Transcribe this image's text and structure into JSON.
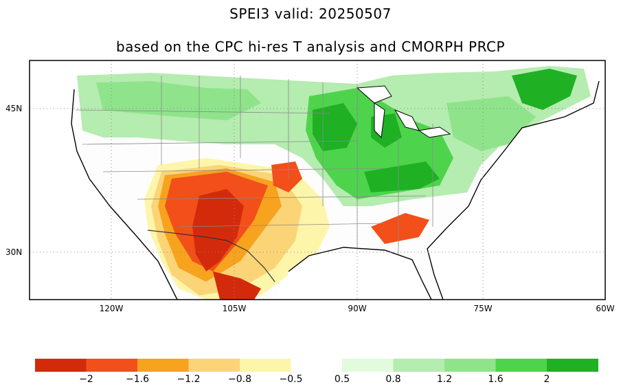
{
  "title_line1": "SPEI3  valid: 20250507",
  "title_line2": "based on the CPC hi-res T analysis and CMORPH PRCP",
  "map": {
    "lat_labels": [
      "45N",
      "30N"
    ],
    "lon_labels": [
      "120W",
      "105W",
      "90W",
      "75W",
      "60W"
    ],
    "grid": "dotted"
  },
  "legend": {
    "bins": [
      {
        "color": "#d42a0c"
      },
      {
        "color": "#f24f1a"
      },
      {
        "color": "#f7a31e"
      },
      {
        "color": "#fbd478"
      },
      {
        "color": "#fdf5aa"
      },
      {
        "color": "#ffffff"
      },
      {
        "color": "#e2fbdc"
      },
      {
        "color": "#b5ecaf"
      },
      {
        "color": "#8fe48b"
      },
      {
        "color": "#4ed44c"
      },
      {
        "color": "#1fb024"
      }
    ],
    "labels": [
      "−2",
      "−1.6",
      "−1.2",
      "−0.8",
      "−0.5",
      "0.5",
      "0.8",
      "1.2",
      "1.6",
      "2"
    ]
  }
}
